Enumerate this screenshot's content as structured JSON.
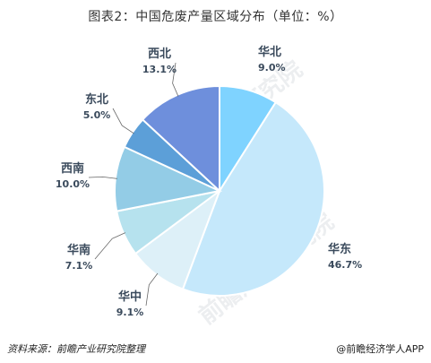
{
  "chart_data": {
    "type": "pie",
    "title": "图表2：中国危废产量区域分布（单位：%）",
    "slices": [
      {
        "label": "华北",
        "value": 9.0,
        "value_label": "9.0%",
        "color": "#7fd3ff"
      },
      {
        "label": "华东",
        "value": 46.7,
        "value_label": "46.7%",
        "color": "#c5e8fb"
      },
      {
        "label": "华中",
        "value": 9.1,
        "value_label": "9.1%",
        "color": "#ddf0f8"
      },
      {
        "label": "华南",
        "value": 7.1,
        "value_label": "7.1%",
        "color": "#b6e2ee"
      },
      {
        "label": "西南",
        "value": 10.0,
        "value_label": "10.0%",
        "color": "#93cce6"
      },
      {
        "label": "东北",
        "value": 5.0,
        "value_label": "5.0%",
        "color": "#5c9fd8"
      },
      {
        "label": "西北",
        "value": 13.1,
        "value_label": "13.1%",
        "color": "#6e8fdc"
      }
    ],
    "label_color": "#3a4a5c"
  },
  "footer": {
    "source": "资料来源：前瞻产业研究院整理",
    "brand": "@前瞻经济学人APP"
  },
  "watermark": {
    "text": "前瞻产业研究院"
  }
}
